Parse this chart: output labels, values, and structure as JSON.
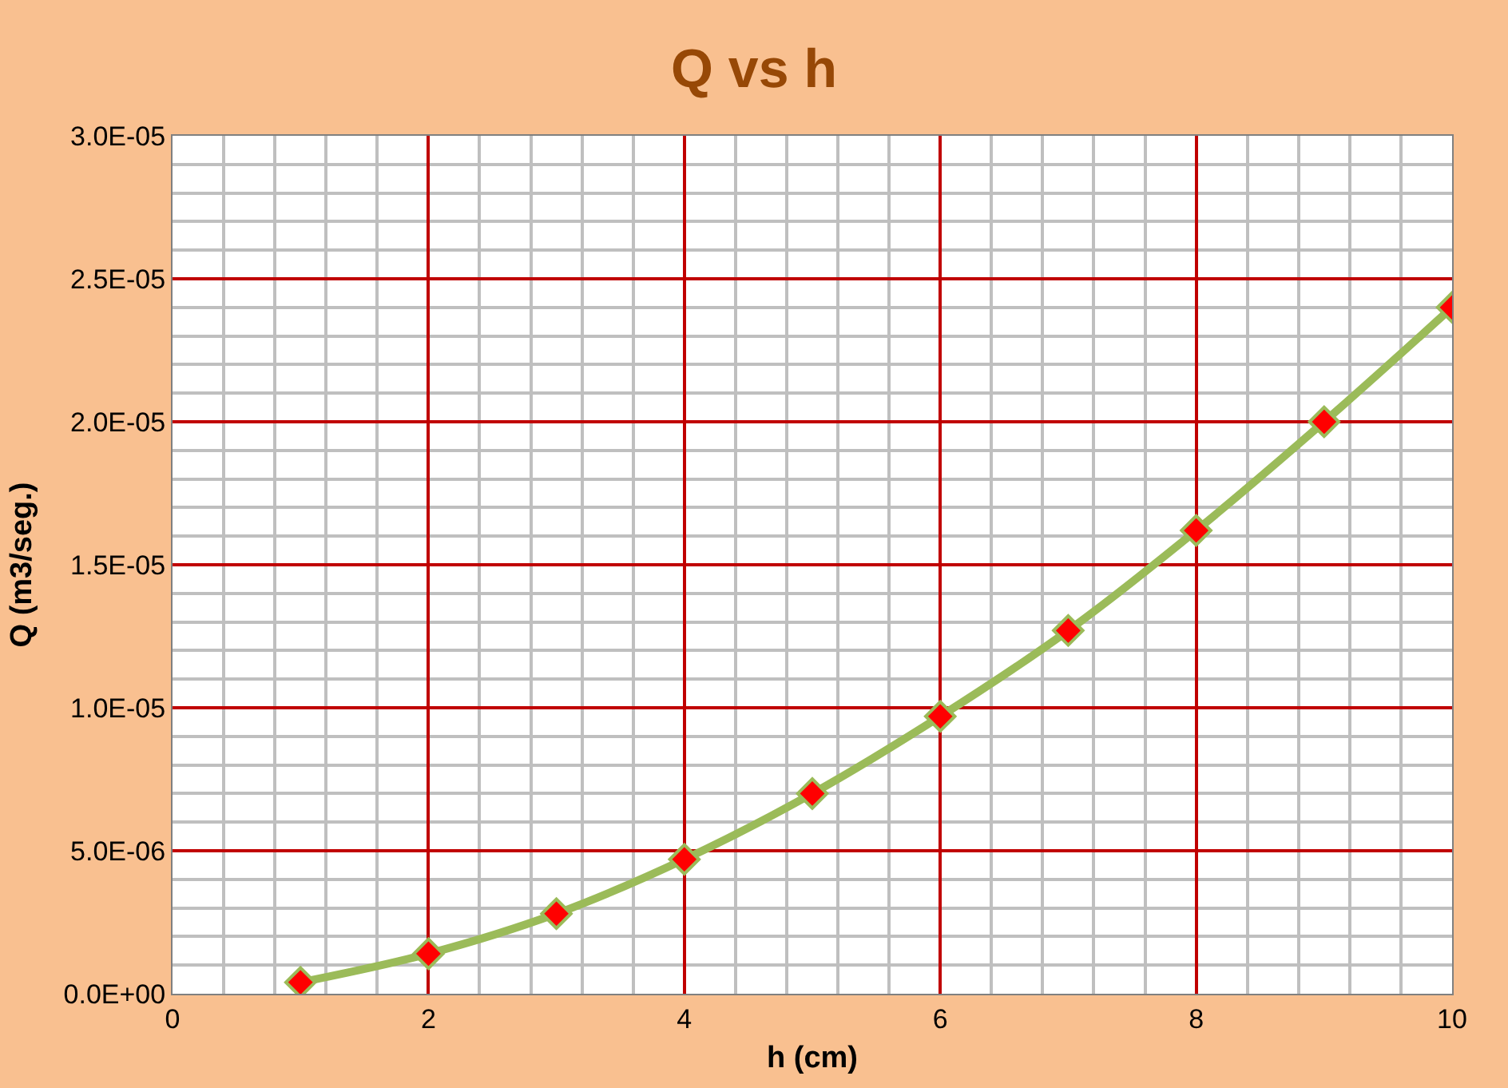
{
  "chart_data": {
    "type": "line",
    "title": "Q vs h",
    "xlabel": "h (cm)",
    "ylabel": "Q (m3/seg.)",
    "x": [
      1,
      2,
      3,
      4,
      5,
      6,
      7,
      8,
      9,
      10
    ],
    "series": [
      {
        "color": "#9bbb59",
        "values": [
          4e-07,
          1.4e-06,
          2.8e-06,
          4.7e-06,
          7e-06,
          9.7e-06,
          1.27e-05,
          1.62e-05,
          2e-05,
          2.4e-05
        ]
      }
    ],
    "xlim": [
      0,
      10
    ],
    "xticks": [
      0,
      2,
      4,
      6,
      8,
      10
    ],
    "ylim": [
      0,
      3e-05
    ],
    "yticks": [
      {
        "value": 0,
        "label": "0.0E+00"
      },
      {
        "value": 5e-06,
        "label": "5.0E-06"
      },
      {
        "value": 1e-05,
        "label": "1.0E-05"
      },
      {
        "value": 1.5e-05,
        "label": "1.5E-05"
      },
      {
        "value": 2e-05,
        "label": "2.0E-05"
      },
      {
        "value": 2.5e-05,
        "label": "2.5E-05"
      },
      {
        "value": 3e-05,
        "label": "3.0E-05"
      }
    ],
    "grid": true,
    "marker": "diamond",
    "line_style": "solid"
  }
}
